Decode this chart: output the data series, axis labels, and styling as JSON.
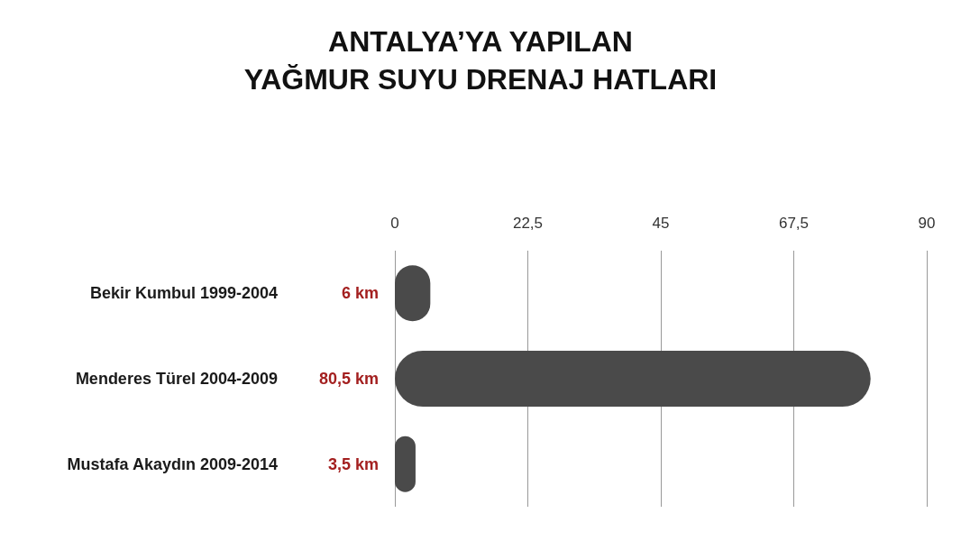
{
  "chart_data": {
    "type": "bar",
    "orientation": "horizontal",
    "title": "ANTALYA’YA YAPILAN\nYAĞMUR SUYU DRENAJ HATLARI",
    "categories": [
      "Bekir Kumbul 1999-2004",
      "Menderes Türel 2004-2009",
      "Mustafa Akaydın 2009-2014"
    ],
    "values": [
      6,
      80.5,
      3.5
    ],
    "color": "#4a4a4a",
    "value_labels": [
      "6 km",
      "80,5 km",
      "3,5 km"
    ],
    "xlim": [
      0,
      90
    ],
    "xticks": [
      0,
      {
        "value": 22.5,
        "label": "22,5"
      },
      45,
      {
        "value": 67.5,
        "label": "67,5"
      },
      90
    ],
    "grid": "x"
  }
}
